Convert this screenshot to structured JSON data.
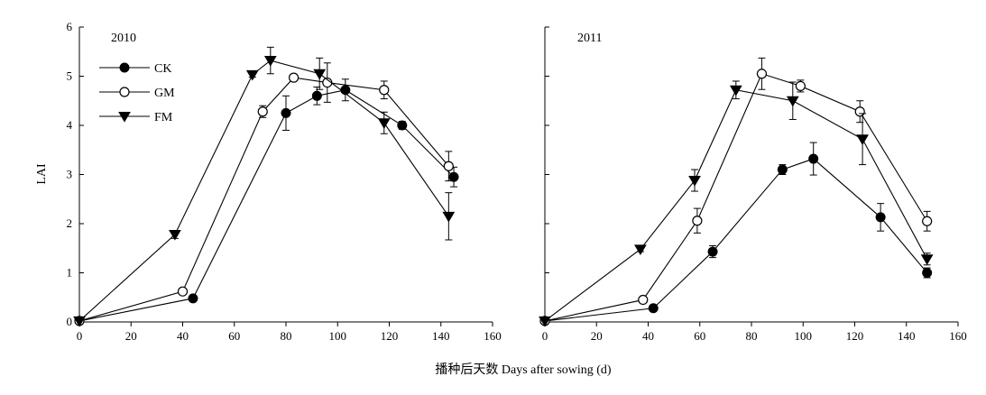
{
  "xlabel": "播种后天数 Days after sowing (d)",
  "ylabel": "LAI",
  "legend": [
    {
      "name": "CK",
      "marker": "filled-circle"
    },
    {
      "name": "GM",
      "marker": "open-circle"
    },
    {
      "name": "FM",
      "marker": "filled-triangle-down"
    }
  ],
  "chart_data": [
    {
      "type": "line",
      "panel_label": "2010",
      "xlim": [
        0,
        160
      ],
      "ylim": [
        0,
        6
      ],
      "xticks": [
        0,
        20,
        40,
        60,
        80,
        100,
        120,
        140,
        160
      ],
      "yticks": [
        0,
        1,
        2,
        3,
        4,
        5,
        6
      ],
      "grid": false,
      "legend_position": "top-left",
      "series": [
        {
          "name": "CK",
          "marker": "filled-circle",
          "x": [
            0,
            44,
            80,
            92,
            103,
            125,
            145
          ],
          "y": [
            0.02,
            0.48,
            4.25,
            4.6,
            4.72,
            4.0,
            2.95
          ],
          "err": [
            0,
            0.05,
            0.35,
            0.18,
            0.22,
            0.08,
            0.2
          ]
        },
        {
          "name": "GM",
          "marker": "open-circle",
          "x": [
            0,
            40,
            71,
            83,
            96,
            118,
            143
          ],
          "y": [
            0.02,
            0.62,
            4.28,
            4.97,
            4.87,
            4.72,
            3.17
          ],
          "err": [
            0,
            0.05,
            0.12,
            0.05,
            0.4,
            0.18,
            0.3
          ]
        },
        {
          "name": "FM",
          "marker": "filled-triangle-down",
          "x": [
            0,
            37,
            67,
            74,
            93,
            118,
            143
          ],
          "y": [
            0.02,
            1.78,
            5.03,
            5.32,
            5.05,
            4.05,
            2.15
          ],
          "err": [
            0,
            0.08,
            0.05,
            0.27,
            0.32,
            0.22,
            0.48
          ]
        }
      ]
    },
    {
      "type": "line",
      "panel_label": "2011",
      "xlim": [
        0,
        160
      ],
      "ylim": [
        0,
        6
      ],
      "xticks": [
        0,
        20,
        40,
        60,
        80,
        100,
        120,
        140,
        160
      ],
      "yticks": [
        0,
        1,
        2,
        3,
        4,
        5,
        6
      ],
      "grid": false,
      "legend_position": "none",
      "series": [
        {
          "name": "CK",
          "marker": "filled-circle",
          "x": [
            0,
            42,
            65,
            92,
            104,
            130,
            148
          ],
          "y": [
            0.02,
            0.28,
            1.43,
            3.1,
            3.32,
            2.13,
            1.0
          ],
          "err": [
            0,
            0.05,
            0.12,
            0.1,
            0.33,
            0.28,
            0.1
          ]
        },
        {
          "name": "GM",
          "marker": "open-circle",
          "x": [
            0,
            38,
            59,
            84,
            99,
            122,
            148
          ],
          "y": [
            0.02,
            0.45,
            2.06,
            5.05,
            4.8,
            4.28,
            2.05
          ],
          "err": [
            0,
            0.05,
            0.25,
            0.32,
            0.12,
            0.22,
            0.2
          ]
        },
        {
          "name": "FM",
          "marker": "filled-triangle-down",
          "x": [
            0,
            37,
            58,
            74,
            96,
            123,
            148
          ],
          "y": [
            0.02,
            1.48,
            2.88,
            4.72,
            4.5,
            3.72,
            1.28
          ],
          "err": [
            0,
            0.05,
            0.22,
            0.18,
            0.38,
            0.52,
            0.12
          ]
        }
      ]
    }
  ]
}
